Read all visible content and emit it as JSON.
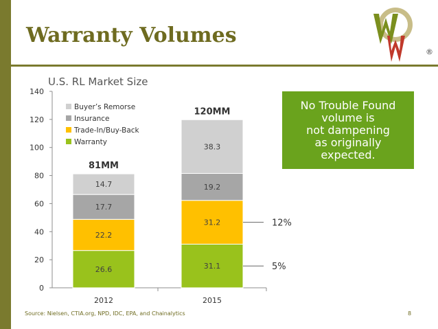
{
  "slide": {
    "title": "Warranty Volumes",
    "subtitle": "U.S. RL Market Size",
    "callout_lines": [
      "No Trouble Found",
      "volume is",
      "not dampening",
      "as originally",
      "expected."
    ],
    "footer": "Source: Nielsen, CTIA.org, NPD, IDC, EPA, and Chainalytics",
    "page_number": "8",
    "logo_mark": "®"
  },
  "chart_data": {
    "type": "bar",
    "stacked": true,
    "categories": [
      "2012",
      "2015"
    ],
    "series": [
      {
        "name": "Warranty",
        "values": [
          26.6,
          31.1
        ],
        "color": "#99c21c"
      },
      {
        "name": "Trade-In/Buy-Back",
        "values": [
          22.2,
          31.2
        ],
        "color": "#ffc000"
      },
      {
        "name": "Insurance",
        "values": [
          17.7,
          19.2
        ],
        "color": "#a6a6a6"
      },
      {
        "name": "Buyer's Remorse",
        "values": [
          14.7,
          38.3
        ],
        "color": "#d0d0d0"
      }
    ],
    "totals": [
      "81MM",
      "120MM"
    ],
    "ylim": [
      0,
      140
    ],
    "yticks": [
      0,
      20,
      40,
      60,
      80,
      100,
      120,
      140
    ],
    "legend_order": [
      "Buyer’s Remorse",
      "Insurance",
      "Trade-In/Buy-Back",
      "Warranty"
    ],
    "legend_placement": "top-left",
    "annotations": [
      {
        "label": "12%",
        "series": "Trade-In/Buy-Back",
        "category": "2015"
      },
      {
        "label": "5%",
        "series": "Warranty",
        "category": "2015"
      }
    ],
    "grid": false
  }
}
